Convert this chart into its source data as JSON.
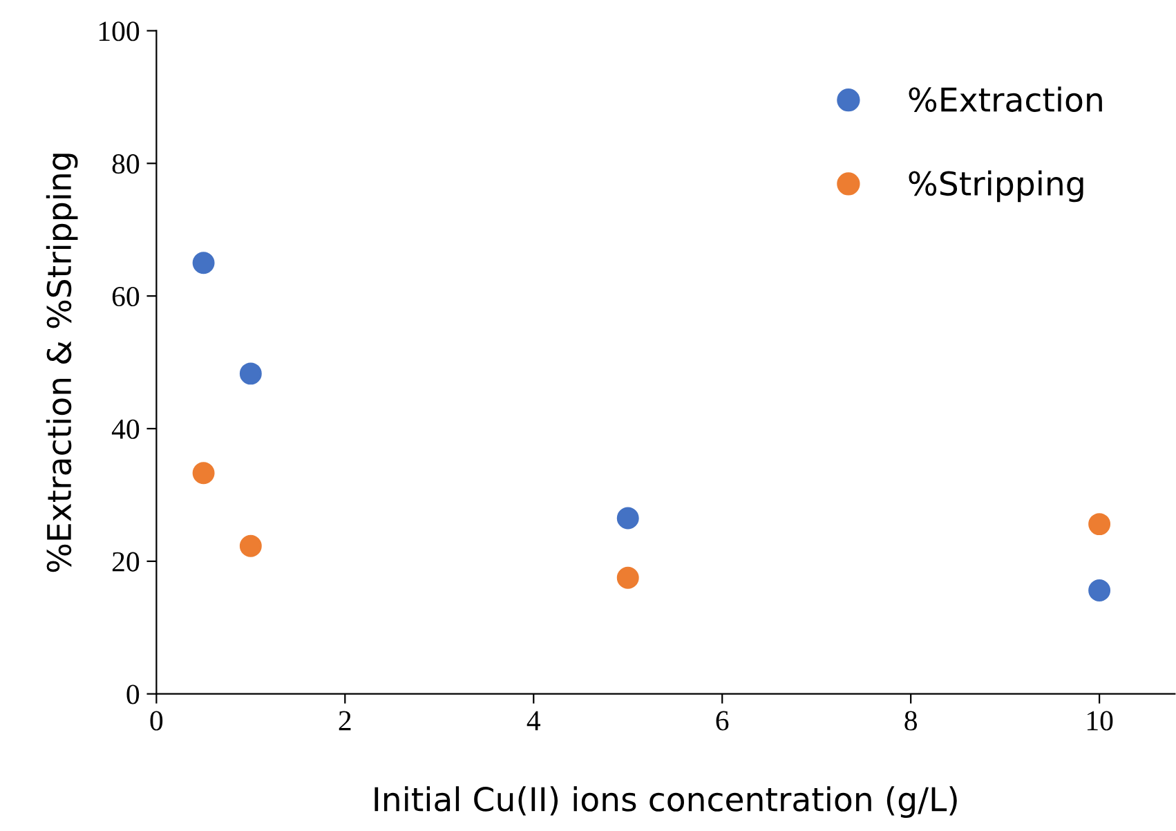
{
  "chart_data": {
    "type": "scatter",
    "xlabel": "Initial Cu(II) ions concentration (g/L)",
    "ylabel": "%Extraction & %Stripping",
    "x": [
      0.5,
      1,
      5,
      10
    ],
    "series": [
      {
        "name": "%Extraction",
        "color": "#4472c4",
        "values": [
          65.0,
          48.3,
          26.5,
          15.6
        ]
      },
      {
        "name": "%Stripping",
        "color": "#ed7d31",
        "values": [
          33.3,
          22.3,
          17.5,
          25.6
        ]
      }
    ],
    "xlim": [
      0,
      10.8
    ],
    "ylim": [
      0,
      100
    ],
    "xticks": [
      0,
      2,
      4,
      6,
      8,
      10
    ],
    "yticks": [
      0,
      20,
      40,
      60,
      80,
      100
    ],
    "grid": false,
    "legend": "top right",
    "marker": "circle"
  }
}
